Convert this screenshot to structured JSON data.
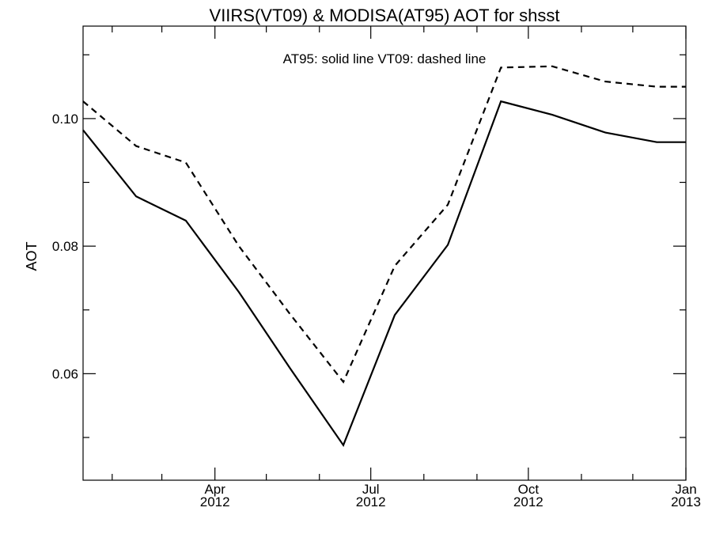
{
  "chart_data": {
    "type": "line",
    "title": "VIIRS(VT09) & MODISA(AT95)  AOT for shsst",
    "annotation": "AT95: solid line   VT09: dashed line",
    "ylabel": "AOT",
    "xlabel": "",
    "x_range": [
      "2012-01-15",
      "2013-01-01"
    ],
    "ylim": [
      0.0433,
      0.1145
    ],
    "y_ticks": [
      {
        "value": 0.06,
        "label": "0.06"
      },
      {
        "value": 0.08,
        "label": "0.08"
      },
      {
        "value": 0.1,
        "label": "0.10"
      }
    ],
    "y_minor_ticks": [
      0.05,
      0.07,
      0.09,
      0.11
    ],
    "x_major_ticks": [
      {
        "date": "2012-04-01",
        "label": "Apr",
        "year": "2012"
      },
      {
        "date": "2012-07-01",
        "label": "Jul",
        "year": "2012"
      },
      {
        "date": "2012-10-01",
        "label": "Oct",
        "year": "2012"
      },
      {
        "date": "2013-01-01",
        "label": "Jan",
        "year": "2013"
      }
    ],
    "x_minor_ticks": [
      "2012-02-01",
      "2012-03-01",
      "2012-05-01",
      "2012-06-01",
      "2012-08-01",
      "2012-09-01",
      "2012-11-01",
      "2012-12-01"
    ],
    "grid": false,
    "series": [
      {
        "name": "AT95",
        "style": "solid",
        "color": "#000000",
        "x": [
          "2012-01-15",
          "2012-02-15",
          "2012-03-15",
          "2012-04-15",
          "2012-05-15",
          "2012-06-15",
          "2012-07-15",
          "2012-08-15",
          "2012-09-15",
          "2012-10-15",
          "2012-11-15",
          "2012-12-15",
          "2013-01-01"
        ],
        "values": [
          0.0982,
          0.0878,
          0.084,
          0.0728,
          0.0608,
          0.0488,
          0.0692,
          0.0802,
          0.1027,
          0.1006,
          0.0978,
          0.0963,
          0.0963
        ]
      },
      {
        "name": "VT09",
        "style": "dashed",
        "color": "#000000",
        "x": [
          "2012-01-15",
          "2012-02-15",
          "2012-03-15",
          "2012-04-15",
          "2012-05-15",
          "2012-06-15",
          "2012-07-15",
          "2012-08-15",
          "2012-09-15",
          "2012-10-15",
          "2012-11-15",
          "2012-12-15",
          "2013-01-01"
        ],
        "values": [
          0.1027,
          0.0957,
          0.0931,
          0.08,
          0.0693,
          0.0587,
          0.0769,
          0.0865,
          0.108,
          0.1082,
          0.1058,
          0.105,
          0.105
        ]
      }
    ]
  }
}
